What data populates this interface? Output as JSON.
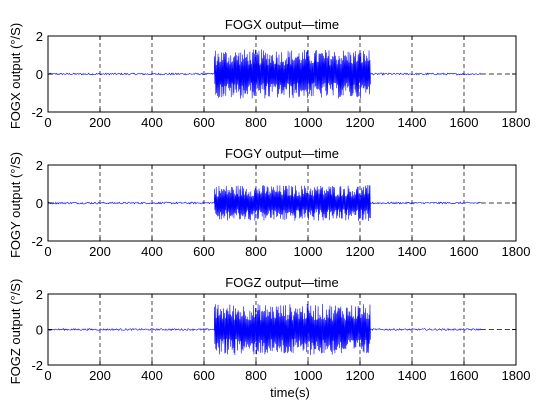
{
  "page": {
    "xlabel": "time(s)"
  },
  "chart_data": [
    {
      "type": "line",
      "title": "FOGX output—time",
      "ylabel": "FOGX output  (°/S)",
      "xlabel": "",
      "xlim": [
        0,
        1800
      ],
      "ylim": [
        -2,
        2
      ],
      "xticks": [
        "0",
        "200",
        "400",
        "600",
        "800",
        "1000",
        "1200",
        "1400",
        "1600",
        "1800"
      ],
      "yticks": [
        "2",
        "0",
        "-2"
      ],
      "grid": "x-dashed",
      "series": [
        {
          "color": "#0000ff",
          "segments": [
            {
              "x": [
                0,
                640
              ],
              "amplitude": 0.05
            },
            {
              "x": [
                640,
                1240
              ],
              "amplitude": 1.3
            },
            {
              "x": [
                1240,
                1665
              ],
              "amplitude": 0.05
            }
          ]
        }
      ]
    },
    {
      "type": "line",
      "title": "FOGY output—time",
      "ylabel": "FOGY output  (°/S)",
      "xlabel": "",
      "xlim": [
        0,
        1800
      ],
      "ylim": [
        -2,
        2
      ],
      "xticks": [
        "0",
        "200",
        "400",
        "600",
        "800",
        "1000",
        "1200",
        "1400",
        "1600",
        "1800"
      ],
      "yticks": [
        "2",
        "0",
        "-2"
      ],
      "grid": "x-dashed",
      "series": [
        {
          "color": "#0000ff",
          "segments": [
            {
              "x": [
                0,
                640
              ],
              "amplitude": 0.05
            },
            {
              "x": [
                640,
                1240
              ],
              "amplitude": 0.95
            },
            {
              "x": [
                1240,
                1665
              ],
              "amplitude": 0.05
            }
          ]
        }
      ]
    },
    {
      "type": "line",
      "title": "FOGZ output—time",
      "ylabel": "FOGZ output  (°/S)",
      "xlabel": "time(s)",
      "xlim": [
        0,
        1800
      ],
      "ylim": [
        -2,
        2
      ],
      "xticks": [
        "0",
        "200",
        "400",
        "600",
        "800",
        "1000",
        "1200",
        "1400",
        "1600",
        "1800"
      ],
      "yticks": [
        "2",
        "0",
        "-2"
      ],
      "grid": "x-dashed",
      "series": [
        {
          "color": "#0000ff",
          "segments": [
            {
              "x": [
                0,
                640
              ],
              "amplitude": 0.05
            },
            {
              "x": [
                640,
                1240
              ],
              "amplitude": 1.45
            },
            {
              "x": [
                1240,
                1665
              ],
              "amplitude": 0.05
            }
          ]
        }
      ]
    }
  ]
}
